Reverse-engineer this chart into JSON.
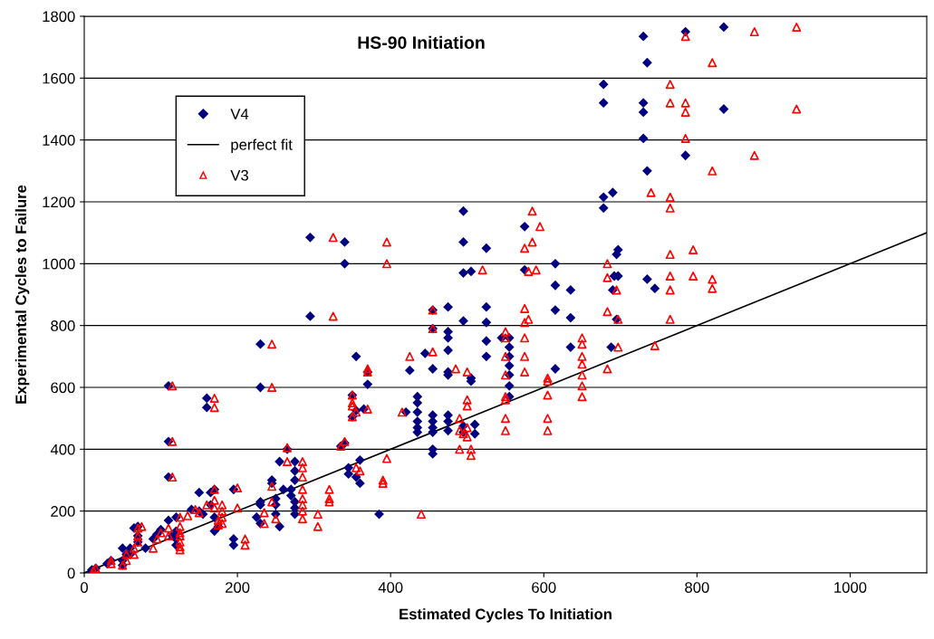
{
  "chart_data": {
    "type": "scatter",
    "title": "HS-90 Initiation",
    "xlabel": "Estimated Cycles To Initiation",
    "ylabel": "Experimental Cycles to Failure",
    "xlim": [
      0,
      1100
    ],
    "ylim": [
      0,
      1800
    ],
    "xticks": [
      0,
      200,
      400,
      600,
      800,
      1000
    ],
    "yticks": [
      0,
      200,
      400,
      600,
      800,
      1000,
      1200,
      1400,
      1600,
      1800
    ],
    "grid": "y",
    "legend": "top left",
    "series": [
      {
        "name": "V4",
        "marker": "diamond",
        "color": "#000080",
        "x": [
          730,
          785,
          835,
          735,
          678,
          678,
          730,
          730,
          835,
          730,
          735,
          785,
          678,
          690,
          678,
          735,
          745,
          697,
          695,
          697,
          692,
          690,
          695,
          688,
          495,
          495,
          525,
          495,
          505,
          615,
          615,
          635,
          575,
          575,
          615,
          635,
          615,
          635,
          295,
          340,
          340,
          295,
          230,
          230,
          110,
          160,
          160,
          110,
          110,
          525,
          525,
          495,
          475,
          475,
          475,
          475,
          475,
          475,
          455,
          455,
          455,
          445,
          525,
          525,
          505,
          505,
          555,
          555,
          555,
          555,
          555,
          555,
          555,
          545,
          425,
          420,
          435,
          435,
          435,
          435,
          435,
          435,
          455,
          455,
          455,
          455,
          455,
          455,
          475,
          475,
          475,
          495,
          495,
          510,
          510,
          355,
          370,
          370,
          365,
          355,
          350,
          350,
          340,
          335,
          345,
          345,
          360,
          360,
          355,
          385,
          265,
          255,
          275,
          275,
          275,
          270,
          270,
          275,
          275,
          275,
          260,
          250,
          250,
          250,
          230,
          230,
          225,
          230,
          255,
          245,
          245,
          195,
          195,
          195,
          170,
          165,
          165,
          150,
          150,
          140,
          155,
          170,
          175,
          170,
          120,
          110,
          120,
          120,
          120,
          115,
          100,
          95,
          90,
          80,
          70,
          65,
          70,
          70,
          60,
          60,
          55,
          50,
          50,
          50,
          35,
          30,
          15,
          10,
          10
        ],
        "values": [
          1735,
          1750,
          1765,
          1650,
          1580,
          1520,
          1520,
          1490,
          1500,
          1405,
          1300,
          1350,
          1215,
          1230,
          1180,
          950,
          920,
          1045,
          1030,
          960,
          960,
          915,
          820,
          730,
          1170,
          1070,
          1050,
          970,
          975,
          1000,
          930,
          915,
          1120,
          980,
          850,
          825,
          660,
          730,
          1085,
          1070,
          1000,
          830,
          740,
          600,
          605,
          565,
          535,
          425,
          310,
          860,
          810,
          815,
          860,
          780,
          760,
          720,
          650,
          640,
          850,
          790,
          660,
          710,
          750,
          700,
          630,
          620,
          760,
          730,
          700,
          670,
          640,
          605,
          570,
          760,
          655,
          520,
          570,
          550,
          520,
          490,
          470,
          455,
          510,
          490,
          470,
          455,
          400,
          385,
          490,
          460,
          510,
          475,
          455,
          450,
          480,
          700,
          650,
          610,
          530,
          525,
          575,
          505,
          420,
          410,
          340,
          320,
          365,
          290,
          310,
          190,
          400,
          360,
          360,
          330,
          300,
          270,
          250,
          230,
          210,
          190,
          270,
          240,
          220,
          190,
          230,
          220,
          180,
          160,
          150,
          290,
          300,
          270,
          110,
          90,
          270,
          260,
          220,
          260,
          200,
          205,
          190,
          180,
          150,
          135,
          180,
          170,
          135,
          110,
          90,
          120,
          140,
          125,
          110,
          80,
          150,
          145,
          120,
          100,
          80,
          60,
          60,
          80,
          40,
          25,
          40,
          30,
          15,
          10,
          5
        ]
      },
      {
        "name": "perfect fit",
        "type": "line",
        "marker": "none",
        "line_style": "solid",
        "color": "#000000",
        "x": [
          0,
          1100
        ],
        "values": [
          0,
          1100
        ]
      },
      {
        "name": "V3",
        "marker": "triangle",
        "color": "#ff0000",
        "x": [
          785,
          875,
          930,
          820,
          765,
          765,
          785,
          785,
          930,
          785,
          820,
          875,
          740,
          765,
          765,
          765,
          795,
          765,
          795,
          820,
          820,
          765,
          765,
          745,
          695,
          697,
          697,
          683,
          683,
          683,
          683,
          650,
          650,
          650,
          650,
          650,
          650,
          650,
          605,
          605,
          605,
          605,
          605,
          575,
          585,
          585,
          595,
          580,
          590,
          575,
          575,
          580,
          575,
          575,
          575,
          550,
          550,
          550,
          550,
          550,
          550,
          550,
          550,
          520,
          395,
          395,
          325,
          325,
          245,
          245,
          115,
          170,
          170,
          115,
          115,
          455,
          455,
          455,
          425,
          415,
          485,
          500,
          500,
          500,
          490,
          490,
          495,
          500,
          500,
          505,
          505,
          490,
          440,
          395,
          390,
          390,
          370,
          370,
          370,
          355,
          350,
          350,
          350,
          350,
          340,
          335,
          355,
          360,
          305,
          305,
          320,
          320,
          320,
          285,
          285,
          285,
          285,
          285,
          285,
          285,
          285,
          265,
          265,
          245,
          245,
          250,
          235,
          235,
          210,
          210,
          200,
          200,
          180,
          180,
          180,
          180,
          170,
          170,
          170,
          175,
          175,
          150,
          160,
          145,
          135,
          125,
          125,
          125,
          125,
          125,
          125,
          125,
          110,
          110,
          100,
          95,
          90,
          75,
          70,
          70,
          70,
          65,
          65,
          55,
          55,
          50,
          35,
          35,
          15,
          12
        ],
        "values": [
          1735,
          1750,
          1765,
          1650,
          1580,
          1520,
          1520,
          1490,
          1500,
          1405,
          1300,
          1350,
          1230,
          1215,
          1180,
          1030,
          1045,
          960,
          960,
          950,
          920,
          915,
          820,
          735,
          915,
          820,
          730,
          1000,
          955,
          845,
          660,
          760,
          740,
          700,
          675,
          640,
          605,
          570,
          630,
          620,
          575,
          500,
          460,
          1050,
          1070,
          1170,
          1120,
          975,
          980,
          855,
          810,
          820,
          760,
          700,
          650,
          780,
          760,
          700,
          640,
          570,
          560,
          500,
          460,
          980,
          1070,
          1000,
          1085,
          830,
          740,
          600,
          605,
          565,
          535,
          425,
          310,
          850,
          790,
          715,
          700,
          520,
          660,
          650,
          560,
          540,
          500,
          460,
          450,
          470,
          440,
          400,
          380,
          400,
          190,
          370,
          300,
          290,
          530,
          650,
          660,
          520,
          575,
          505,
          540,
          550,
          425,
          410,
          340,
          330,
          190,
          150,
          270,
          240,
          230,
          360,
          340,
          310,
          270,
          240,
          220,
          200,
          175,
          405,
          360,
          280,
          230,
          175,
          195,
          160,
          110,
          90,
          275,
          210,
          220,
          200,
          180,
          160,
          270,
          235,
          210,
          170,
          155,
          195,
          220,
          205,
          185,
          180,
          150,
          130,
          120,
          100,
          85,
          75,
          145,
          120,
          130,
          110,
          80,
          150,
          145,
          120,
          100,
          80,
          60,
          60,
          40,
          25,
          40,
          30,
          15,
          8
        ]
      }
    ]
  }
}
